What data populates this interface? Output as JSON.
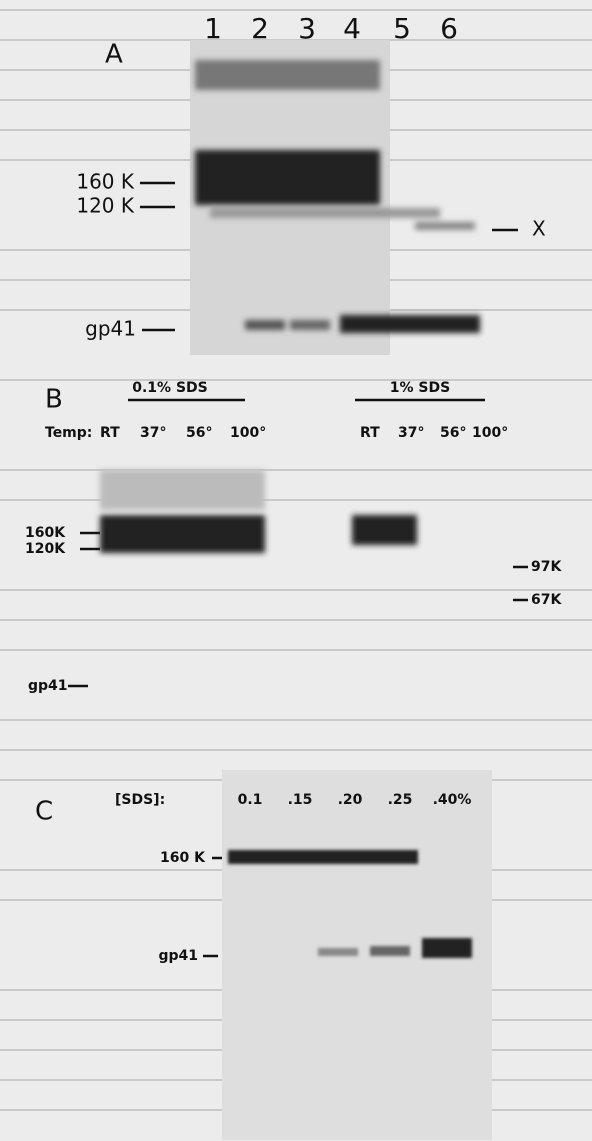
{
  "panel_a": {
    "label": "A",
    "lanes": [
      "1",
      "2",
      "3",
      "4",
      "5",
      "6"
    ],
    "markers": [
      "160 K",
      "120 K",
      "gp41"
    ],
    "band_x": "X"
  },
  "panel_b": {
    "label": "B",
    "group_left": "0.1% SDS",
    "group_right": "1% SDS",
    "temp_label": "Temp:",
    "temps_left": [
      "RT",
      "37°",
      "56°",
      "100°"
    ],
    "temps_right": [
      "RT",
      "37°",
      "56°",
      "100°"
    ],
    "markers": [
      "160K",
      "120K",
      "gp41"
    ],
    "size_markers": [
      "97K",
      "67K"
    ]
  },
  "panel_c": {
    "label": "C",
    "sds_label": "[SDS]:",
    "concentrations": [
      "0.1",
      ".15",
      ".20",
      ".25",
      ".40%"
    ],
    "markers": [
      "160 K",
      "gp41"
    ]
  }
}
